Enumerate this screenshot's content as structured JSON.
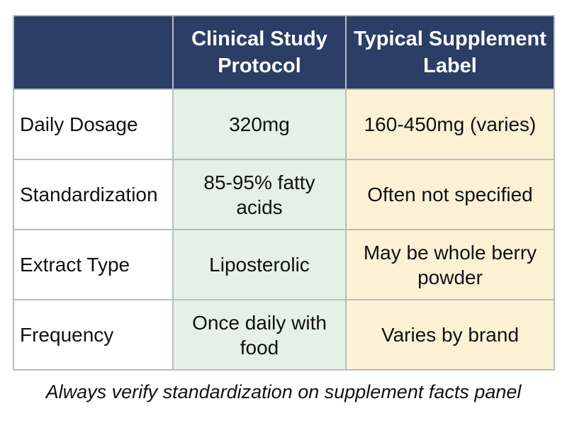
{
  "table": {
    "headers": [
      "",
      "Clinical Study Protocol",
      "Typical Supplement Label"
    ],
    "rows": [
      {
        "label": "Daily Dosage",
        "clinical": "320mg",
        "supplement": "160-450mg (varies)"
      },
      {
        "label": "Standardization",
        "clinical": "85-95% fatty acids",
        "supplement": "Often not specified"
      },
      {
        "label": "Extract Type",
        "clinical": "Liposterolic",
        "supplement": "May be whole berry powder"
      },
      {
        "label": "Frequency",
        "clinical": "Once daily with food",
        "supplement": "Varies by brand"
      }
    ]
  },
  "footnote": "Always verify standardization on supplement facts panel",
  "colors": {
    "header_bg": "#2b3e66",
    "clinical_bg": "#e4f1e4",
    "supplement_bg": "#fbf2d6",
    "border": "#b9bcc1"
  }
}
